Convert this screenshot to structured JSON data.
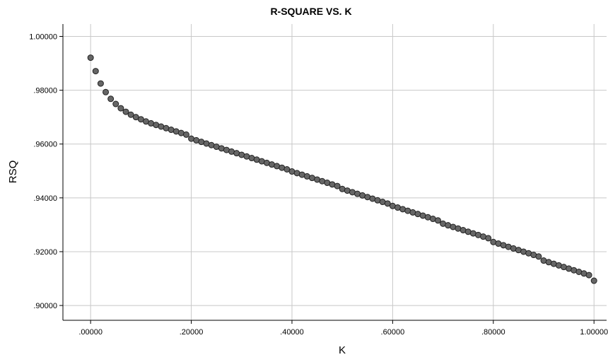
{
  "chart_data": {
    "type": "scatter",
    "title": "R-SQUARE VS. K",
    "xlabel": "K",
    "ylabel": "RSQ",
    "xlim": [
      -0.055,
      1.025
    ],
    "ylim": [
      0.8945,
      1.0046
    ],
    "x_ticks": [
      0.0,
      0.2,
      0.4,
      0.6,
      0.8,
      1.0
    ],
    "x_tick_labels": [
      ".00000",
      ".20000",
      ".40000",
      ".60000",
      ".80000",
      "1.00000"
    ],
    "y_ticks": [
      0.9,
      0.92,
      0.94,
      0.96,
      0.98,
      1.0
    ],
    "y_tick_labels": [
      ".90000",
      ".92000",
      ".94000",
      ".96000",
      ".98000",
      "1.00000"
    ],
    "grid": true,
    "marker_color": "#666666",
    "marker_edge_color": "#222222",
    "series": [
      {
        "x": [
          0.0,
          0.01,
          0.02,
          0.03,
          0.04,
          0.05,
          0.06,
          0.07,
          0.08,
          0.09,
          0.1,
          0.11,
          0.12,
          0.13,
          0.14,
          0.15,
          0.16,
          0.17,
          0.18,
          0.19,
          0.2,
          0.21,
          0.22,
          0.23,
          0.24,
          0.25,
          0.26,
          0.27,
          0.28,
          0.29,
          0.3,
          0.31,
          0.32,
          0.33,
          0.34,
          0.35,
          0.36,
          0.37,
          0.38,
          0.39,
          0.4,
          0.41,
          0.42,
          0.43,
          0.44,
          0.45,
          0.46,
          0.47,
          0.48,
          0.49,
          0.5,
          0.51,
          0.52,
          0.53,
          0.54,
          0.55,
          0.56,
          0.57,
          0.58,
          0.59,
          0.6,
          0.61,
          0.62,
          0.63,
          0.64,
          0.65,
          0.66,
          0.67,
          0.68,
          0.69,
          0.7,
          0.71,
          0.72,
          0.73,
          0.74,
          0.75,
          0.76,
          0.77,
          0.78,
          0.79,
          0.8,
          0.81,
          0.82,
          0.83,
          0.84,
          0.85,
          0.86,
          0.87,
          0.88,
          0.89,
          0.9,
          0.91,
          0.92,
          0.93,
          0.94,
          0.95,
          0.96,
          0.97,
          0.98,
          0.99,
          1.0
        ],
        "y": [
          0.9921,
          0.9871,
          0.9825,
          0.9793,
          0.9768,
          0.9749,
          0.9733,
          0.972,
          0.9709,
          0.97,
          0.9692,
          0.9684,
          0.9677,
          0.9671,
          0.9665,
          0.9659,
          0.9653,
          0.9647,
          0.9641,
          0.9635,
          0.962,
          0.9614,
          0.9608,
          0.9602,
          0.9596,
          0.959,
          0.9584,
          0.9578,
          0.9572,
          0.9566,
          0.956,
          0.9554,
          0.9548,
          0.9542,
          0.9536,
          0.953,
          0.9524,
          0.9518,
          0.9512,
          0.9506,
          0.9498,
          0.9492,
          0.9486,
          0.948,
          0.9474,
          0.9468,
          0.9462,
          0.9456,
          0.945,
          0.9444,
          0.9433,
          0.9427,
          0.9421,
          0.9415,
          0.9409,
          0.9403,
          0.9397,
          0.9391,
          0.9385,
          0.9379,
          0.937,
          0.9364,
          0.9358,
          0.9352,
          0.9346,
          0.934,
          0.9334,
          0.9328,
          0.9322,
          0.9316,
          0.9304,
          0.9298,
          0.9292,
          0.9286,
          0.928,
          0.9274,
          0.9268,
          0.9262,
          0.9256,
          0.925,
          0.9236,
          0.923,
          0.9224,
          0.9218,
          0.9212,
          0.9206,
          0.92,
          0.9194,
          0.9188,
          0.9182,
          0.9167,
          0.9161,
          0.9155,
          0.9149,
          0.9143,
          0.9137,
          0.9131,
          0.9125,
          0.9119,
          0.9113,
          0.9092
        ]
      }
    ]
  }
}
